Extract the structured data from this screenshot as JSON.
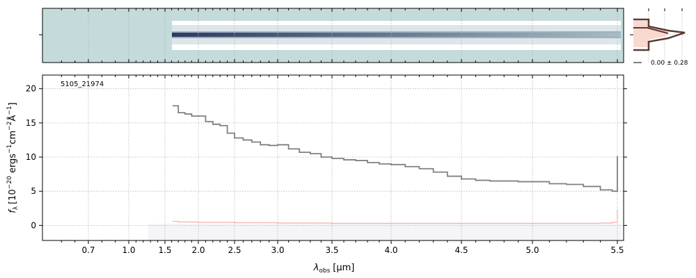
{
  "chart_data": [
    {
      "type": "heatmap",
      "panel": "2d-spectrum",
      "colors": {
        "background": "#c5dada",
        "trace": "#2f3a63",
        "band": "#ffffff"
      },
      "extent_um": [
        1.62,
        5.5
      ]
    },
    {
      "type": "line",
      "panel": "profile",
      "label": "0.00 ± 0.28",
      "colors": {
        "fill": "#f7d9d0",
        "line": "#5a3a32"
      }
    },
    {
      "type": "line",
      "panel": "1d-spectrum",
      "annotation": "5105_21974",
      "xlabel": "λobs [μm]",
      "xlabel_main": "λ",
      "xlabel_sub": "obs",
      "xlabel_unit": "[μm]",
      "ylabel": "fλ [10−20 ergs−1cm−2Å−1]",
      "ylabel_parts": {
        "f": "f",
        "f_sub": "λ",
        "open": "[10",
        "exp1": "−20",
        "ergs": " ergs",
        "exp2": "−1",
        "cm": "cm",
        "exp3": "−2",
        "A": "Å",
        "exp4": "−1",
        "close": "]"
      },
      "x_tick_labels": [
        "0.7",
        "1.0",
        "1.5",
        "2.0",
        "2.5",
        "3.0",
        "3.5",
        "4.0",
        "4.5",
        "5.0",
        "5.5"
      ],
      "x_tick_values": [
        0.7,
        1.0,
        1.5,
        2.0,
        2.5,
        3.0,
        3.5,
        4.0,
        4.5,
        5.0,
        5.5
      ],
      "y_tick_labels": [
        "0",
        "5",
        "10",
        "15",
        "20"
      ],
      "y_tick_values": [
        0,
        5,
        10,
        15,
        20
      ],
      "ylim": [
        -2.2,
        22
      ],
      "xlim_um": [
        0.45,
        5.52
      ],
      "grid": true,
      "series": [
        {
          "role": "flux",
          "color": "#808080",
          "x": [
            1.62,
            1.7,
            1.8,
            1.9,
            2.0,
            2.1,
            2.2,
            2.3,
            2.4,
            2.5,
            2.6,
            2.7,
            2.8,
            2.9,
            3.0,
            3.1,
            3.2,
            3.3,
            3.4,
            3.5,
            3.6,
            3.7,
            3.8,
            3.9,
            4.0,
            4.1,
            4.2,
            4.3,
            4.4,
            4.5,
            4.6,
            4.7,
            4.8,
            4.9,
            5.0,
            5.1,
            5.2,
            5.3,
            5.4,
            5.47,
            5.5
          ],
          "y": [
            17.5,
            16.5,
            16.3,
            16.0,
            16.0,
            15.2,
            14.8,
            14.6,
            13.5,
            12.8,
            12.5,
            12.2,
            11.8,
            11.7,
            11.8,
            11.2,
            10.7,
            10.5,
            10.0,
            9.8,
            9.6,
            9.5,
            9.2,
            9.0,
            8.9,
            8.6,
            8.3,
            7.8,
            7.2,
            6.8,
            6.6,
            6.5,
            6.5,
            6.4,
            6.4,
            6.1,
            6.0,
            5.7,
            5.2,
            5.0,
            10.1
          ]
        },
        {
          "role": "error",
          "color": "#f4b3b3",
          "x": [
            1.62,
            1.7,
            2.0,
            2.5,
            3.0,
            3.5,
            4.0,
            4.5,
            5.0,
            5.4,
            5.47,
            5.5
          ],
          "y": [
            0.6,
            0.5,
            0.45,
            0.4,
            0.35,
            0.3,
            0.3,
            0.3,
            0.3,
            0.35,
            0.45,
            2.3
          ]
        }
      ]
    }
  ]
}
